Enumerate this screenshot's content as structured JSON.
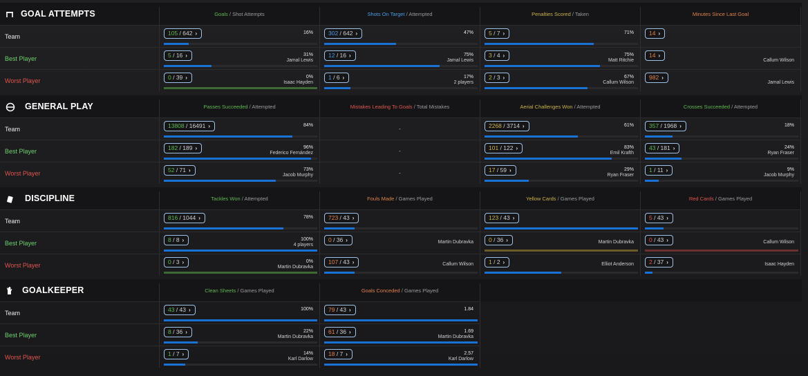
{
  "colors": {
    "green": "#5fb84f",
    "blue": "#4a9ce8",
    "yellow": "#c9b24a",
    "orange": "#e0814a",
    "red": "#e0554f",
    "white": "#dddddd",
    "bar": "#1a73d4",
    "bar_green": "#3d6b33",
    "bar_olive": "#6b5a2a",
    "bar_maroon": "#6b2f2f",
    "grey": "#9a9a9a"
  },
  "sections": [
    {
      "title": "GOAL ATTEMPTS",
      "icon": "goal-icon",
      "columns": [
        {
          "left": "Goals",
          "leftColor": "green",
          "sep": " / ",
          "right": "Shot Attempts"
        },
        {
          "left": "Shots On Target",
          "leftColor": "blue",
          "sep": " / ",
          "right": "Attempted"
        },
        {
          "left": "Penalties Scored",
          "leftColor": "yellow",
          "sep": " / ",
          "right": "Taken"
        },
        {
          "left": "Minutes Since Last Goal",
          "leftColor": "orange",
          "sep": "",
          "right": ""
        }
      ],
      "rows": [
        {
          "label": "Team",
          "labelColor": "white",
          "cells": [
            {
              "a": "105",
              "b": "642",
              "aColor": "green",
              "pct": "16%",
              "who": "",
              "fill": 0.16,
              "bar": "bar"
            },
            {
              "a": "302",
              "b": "642",
              "aColor": "blue",
              "pct": "47%",
              "who": "",
              "fill": 0.47,
              "bar": "bar"
            },
            {
              "a": "5",
              "b": "7",
              "aColor": "yellow",
              "pct": "71%",
              "who": "",
              "fill": 0.71,
              "bar": "bar"
            },
            {
              "a": "14",
              "b": "",
              "aColor": "orange",
              "pct": "",
              "who": "",
              "fill": 0,
              "bar": "none"
            }
          ]
        },
        {
          "label": "Best Player",
          "labelColor": "green",
          "cells": [
            {
              "a": "5",
              "b": "16",
              "aColor": "green",
              "pct": "31%",
              "who": "Jamal Lewis",
              "fill": 0.31,
              "bar": "bar"
            },
            {
              "a": "12",
              "b": "16",
              "aColor": "blue",
              "pct": "75%",
              "who": "Jamal Lewis",
              "fill": 0.75,
              "bar": "bar"
            },
            {
              "a": "3",
              "b": "4",
              "aColor": "yellow",
              "pct": "75%",
              "who": "Matt Ritchie",
              "fill": 0.75,
              "bar": "bar"
            },
            {
              "a": "14",
              "b": "",
              "aColor": "orange",
              "pct": "",
              "who": "Callum Wilson",
              "fill": 0,
              "bar": "none"
            }
          ]
        },
        {
          "label": "Worst Player",
          "labelColor": "red",
          "cells": [
            {
              "a": "0",
              "b": "39",
              "aColor": "green",
              "pct": "0%",
              "who": "Isaac Hayden",
              "fill": 1.0,
              "bar": "bar_green"
            },
            {
              "a": "1",
              "b": "6",
              "aColor": "blue",
              "pct": "17%",
              "who": "2 players",
              "fill": 0.17,
              "bar": "bar"
            },
            {
              "a": "2",
              "b": "3",
              "aColor": "yellow",
              "pct": "67%",
              "who": "Callum Wilson",
              "fill": 0.67,
              "bar": "bar"
            },
            {
              "a": "982",
              "b": "",
              "aColor": "orange",
              "pct": "",
              "who": "Jamal Lewis",
              "fill": 0,
              "bar": "none"
            }
          ]
        }
      ]
    },
    {
      "title": "GENERAL PLAY",
      "icon": "general-play-icon",
      "columns": [
        {
          "left": "Passes Succeeded",
          "leftColor": "green",
          "sep": " / ",
          "right": "Attempted"
        },
        {
          "left": "Mistakes Leading To Goals",
          "leftColor": "red",
          "sep": " / ",
          "right": "Total Mistakes"
        },
        {
          "left": "Aerial Challenges Won",
          "leftColor": "yellow",
          "sep": " / ",
          "right": "Attempted"
        },
        {
          "left": "Crosses Succeeded",
          "leftColor": "green",
          "sep": " / ",
          "right": "Attempted"
        }
      ],
      "rows": [
        {
          "label": "Team",
          "labelColor": "white",
          "cells": [
            {
              "a": "13808",
              "b": "16491",
              "aColor": "green",
              "pct": "84%",
              "who": "",
              "fill": 0.84,
              "bar": "bar"
            },
            {
              "dash": "-"
            },
            {
              "a": "2268",
              "b": "3714",
              "aColor": "yellow",
              "pct": "61%",
              "who": "",
              "fill": 0.61,
              "bar": "bar"
            },
            {
              "a": "357",
              "b": "1968",
              "aColor": "green",
              "pct": "18%",
              "who": "",
              "fill": 0.18,
              "bar": "bar"
            }
          ]
        },
        {
          "label": "Best Player",
          "labelColor": "green",
          "cells": [
            {
              "a": "182",
              "b": "189",
              "aColor": "green",
              "pct": "96%",
              "who": "Federico Fernández",
              "fill": 0.96,
              "bar": "bar"
            },
            {
              "dash": "-"
            },
            {
              "a": "101",
              "b": "122",
              "aColor": "yellow",
              "pct": "83%",
              "who": "Emil Krafth",
              "fill": 0.83,
              "bar": "bar"
            },
            {
              "a": "43",
              "b": "181",
              "aColor": "green",
              "pct": "24%",
              "who": "Ryan Fraser",
              "fill": 0.24,
              "bar": "bar"
            }
          ]
        },
        {
          "label": "Worst Player",
          "labelColor": "red",
          "cells": [
            {
              "a": "52",
              "b": "71",
              "aColor": "green",
              "pct": "73%",
              "who": "Jacob Murphy",
              "fill": 0.73,
              "bar": "bar"
            },
            {
              "dash": "-"
            },
            {
              "a": "17",
              "b": "59",
              "aColor": "yellow",
              "pct": "29%",
              "who": "Ryan Fraser",
              "fill": 0.29,
              "bar": "bar"
            },
            {
              "a": "1",
              "b": "11",
              "aColor": "green",
              "pct": "9%",
              "who": "Jacob Murphy",
              "fill": 0.09,
              "bar": "bar"
            }
          ]
        }
      ]
    },
    {
      "title": "DISCIPLINE",
      "icon": "discipline-icon",
      "columns": [
        {
          "left": "Tackles Won",
          "leftColor": "green",
          "sep": " / ",
          "right": "Attempted"
        },
        {
          "left": "Fouls Made",
          "leftColor": "orange",
          "sep": " / ",
          "right": "Games Played"
        },
        {
          "left": "Yellow Cards",
          "leftColor": "yellow",
          "sep": " / ",
          "right": "Games Played"
        },
        {
          "left": "Red Cards",
          "leftColor": "red",
          "sep": " / ",
          "right": "Games Played"
        }
      ],
      "rows": [
        {
          "label": "Team",
          "labelColor": "white",
          "cells": [
            {
              "a": "816",
              "b": "1044",
              "aColor": "green",
              "pct": "78%",
              "who": "",
              "fill": 0.78,
              "bar": "bar"
            },
            {
              "a": "723",
              "b": "43",
              "aColor": "orange",
              "pct": "",
              "who": "",
              "fill": 0.2,
              "bar": "bar"
            },
            {
              "a": "123",
              "b": "43",
              "aColor": "yellow",
              "pct": "",
              "who": "",
              "fill": 1.0,
              "bar": "bar"
            },
            {
              "a": "5",
              "b": "43",
              "aColor": "red",
              "pct": "",
              "who": "",
              "fill": 0.12,
              "bar": "bar"
            }
          ]
        },
        {
          "label": "Best Player",
          "labelColor": "green",
          "cells": [
            {
              "a": "8",
              "b": "8",
              "aColor": "green",
              "pct": "100%",
              "who": "4 players",
              "fill": 1.0,
              "bar": "bar"
            },
            {
              "a": "0",
              "b": "36",
              "aColor": "orange",
              "pct": "",
              "whoC": "Martin Dubravka",
              "fill": 0,
              "bar": "none"
            },
            {
              "a": "0",
              "b": "36",
              "aColor": "yellow",
              "pct": "",
              "whoC": "Martin Dubravka",
              "fill": 1.0,
              "bar": "bar_olive"
            },
            {
              "a": "0",
              "b": "43",
              "aColor": "red",
              "pct": "",
              "whoC": "Callum Wilson",
              "fill": 1.0,
              "bar": "bar_maroon"
            }
          ]
        },
        {
          "label": "Worst Player",
          "labelColor": "red",
          "cells": [
            {
              "a": "0",
              "b": "3",
              "aColor": "green",
              "pct": "0%",
              "who": "Martin Dubravka",
              "fill": 1.0,
              "bar": "bar_green"
            },
            {
              "a": "107",
              "b": "43",
              "aColor": "orange",
              "pct": "",
              "whoC": "Callum Wilson",
              "fill": 0.2,
              "bar": "bar"
            },
            {
              "a": "1",
              "b": "2",
              "aColor": "yellow",
              "pct": "",
              "whoC": "Elliot Anderson",
              "fill": 0.5,
              "bar": "bar"
            },
            {
              "a": "2",
              "b": "37",
              "aColor": "red",
              "pct": "",
              "whoC": "Isaac Hayden",
              "fill": 0.05,
              "bar": "bar"
            }
          ]
        }
      ]
    },
    {
      "title": "GOALKEEPER",
      "icon": "goalkeeper-glove-icon",
      "columns": [
        {
          "left": "Clean Sheets",
          "leftColor": "green",
          "sep": " / ",
          "right": "Games Played"
        },
        {
          "left": "Goals Conceded",
          "leftColor": "orange",
          "sep": " / ",
          "right": "Games Played"
        }
      ],
      "rows": [
        {
          "label": "Team",
          "labelColor": "white",
          "cells": [
            {
              "a": "43",
              "b": "43",
              "aColor": "green",
              "pct": "100%",
              "who": "",
              "fill": 1.0,
              "bar": "bar"
            },
            {
              "a": "79",
              "b": "43",
              "aColor": "orange",
              "pct": "1.84",
              "who": "",
              "fill": 1.0,
              "bar": "bar"
            }
          ]
        },
        {
          "label": "Best Player",
          "labelColor": "green",
          "cells": [
            {
              "a": "8",
              "b": "36",
              "aColor": "green",
              "pct": "22%",
              "who": "Martin Dubravka",
              "fill": 0.22,
              "bar": "bar"
            },
            {
              "a": "61",
              "b": "36",
              "aColor": "orange",
              "pct": "1.69",
              "who": "Martin Dubravka",
              "fill": 1.0,
              "bar": "bar"
            }
          ]
        },
        {
          "label": "Worst Player",
          "labelColor": "red",
          "cells": [
            {
              "a": "1",
              "b": "7",
              "aColor": "green",
              "pct": "14%",
              "who": "Karl Darlow",
              "fill": 0.14,
              "bar": "bar"
            },
            {
              "a": "18",
              "b": "7",
              "aColor": "orange",
              "pct": "2.57",
              "who": "Karl Darlow",
              "fill": 1.0,
              "bar": "bar"
            }
          ]
        }
      ]
    }
  ]
}
